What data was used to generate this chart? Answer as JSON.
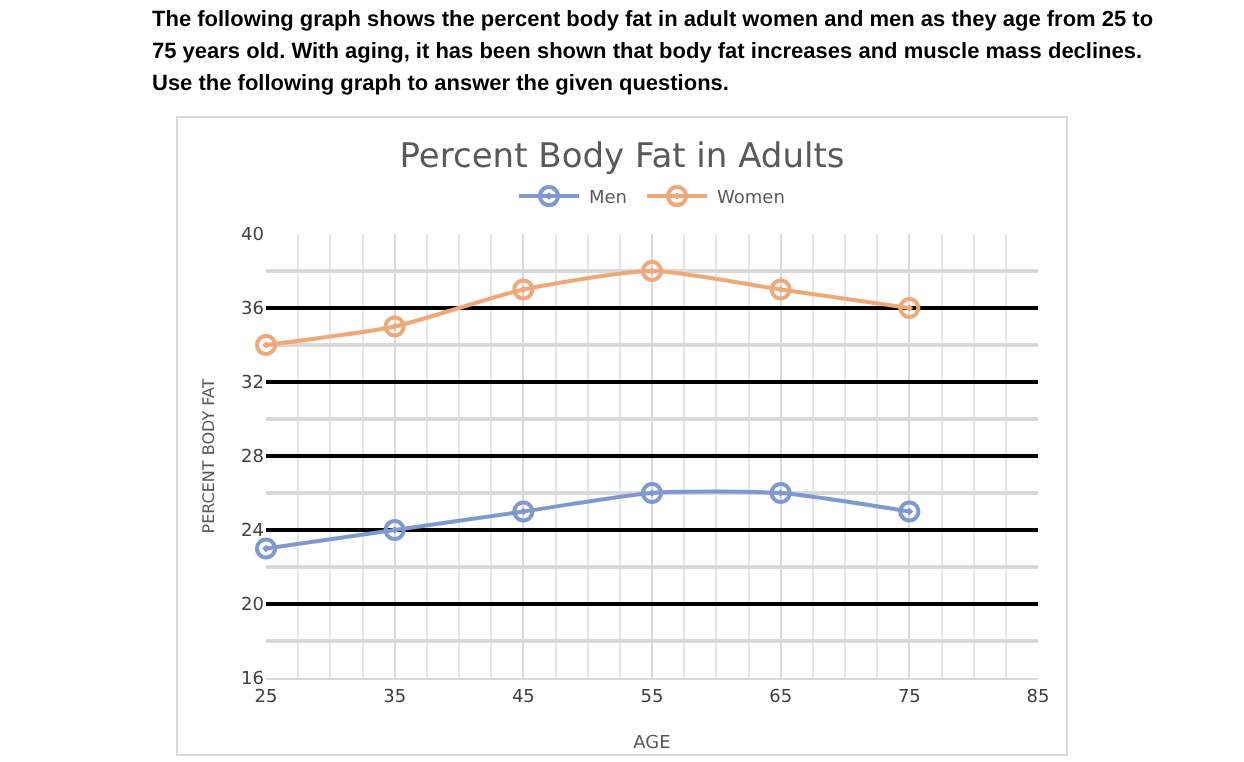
{
  "chart_data": {
    "type": "line",
    "title": "Percent Body Fat in Adults",
    "xlabel": "AGE",
    "ylabel": "PERCENT BODY FAT",
    "annotations": [
      "The following graph shows the percent body fat in adult women and men as they age from 25 to 75 years old. With aging, it has been shown that body fat increases and muscle mass declines. Use the following graph to answer the given questions."
    ],
    "x": [
      25,
      35,
      45,
      55,
      65,
      75
    ],
    "series": [
      {
        "name": "Men",
        "color": "#7f98d0",
        "values": [
          23,
          24,
          25,
          26,
          26,
          25
        ]
      },
      {
        "name": "Women",
        "color": "#f0a878",
        "values": [
          34,
          35,
          37,
          38,
          37,
          36
        ]
      }
    ],
    "xlim": [
      25,
      85
    ],
    "xticks": [
      25,
      35,
      45,
      55,
      65,
      75,
      85
    ],
    "ylim": [
      16,
      40
    ],
    "yticks": [
      16,
      20,
      24,
      28,
      32,
      36,
      40
    ],
    "grid": true,
    "legend": "top",
    "marker": "circle",
    "line_style": "solid"
  }
}
